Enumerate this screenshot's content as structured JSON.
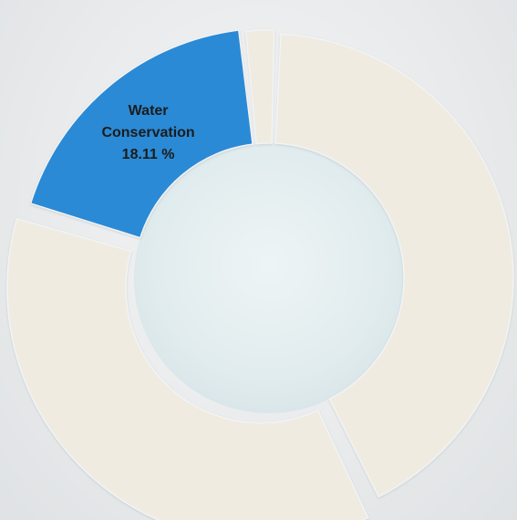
{
  "chart_data": {
    "type": "pie",
    "donut": true,
    "legend": "none",
    "slices": [
      {
        "label": "",
        "value": 41.0,
        "color": "#efebe1",
        "show_label": false
      },
      {
        "label": "",
        "value": 35.7,
        "color": "#efebe1",
        "show_label": false
      },
      {
        "label": "Water\nConservation",
        "value": 18.11,
        "value_text": "18.11 %",
        "color": "#2a8ad6",
        "text_color": "#1c1c1c",
        "show_label": true
      },
      {
        "label": "",
        "value": 2.2,
        "color": "#efebe1",
        "show_label": false
      }
    ],
    "center_fill": "#e3eef0"
  }
}
